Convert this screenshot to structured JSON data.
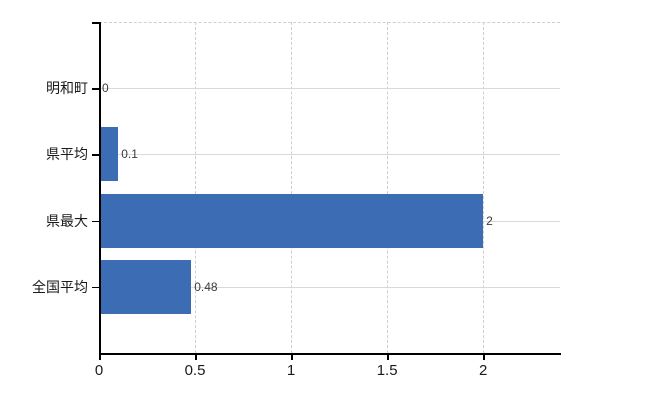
{
  "chart_data": {
    "type": "bar",
    "orientation": "horizontal",
    "title": "",
    "categories": [
      "明和町",
      "県平均",
      "県最大",
      "全国平均"
    ],
    "values": [
      0,
      0.1,
      2,
      0.48
    ],
    "value_labels": [
      "0",
      "0.1",
      "2",
      "0.48"
    ],
    "xlim": [
      0,
      2.4
    ],
    "xticks": [
      0,
      0.5,
      1,
      1.5,
      2
    ],
    "xtick_labels": [
      "0",
      "0.5",
      "1",
      "1.5",
      "2"
    ],
    "legend": false,
    "grid": "vertical-dashed, horizontal-solid",
    "colors": {
      "bar": "#3c6cb3",
      "background": "#ffffff",
      "gridline": "#d9d9d9",
      "axis": "#000000",
      "value_label": "#3a3a3a",
      "category_label": "#1a1a1a"
    }
  }
}
